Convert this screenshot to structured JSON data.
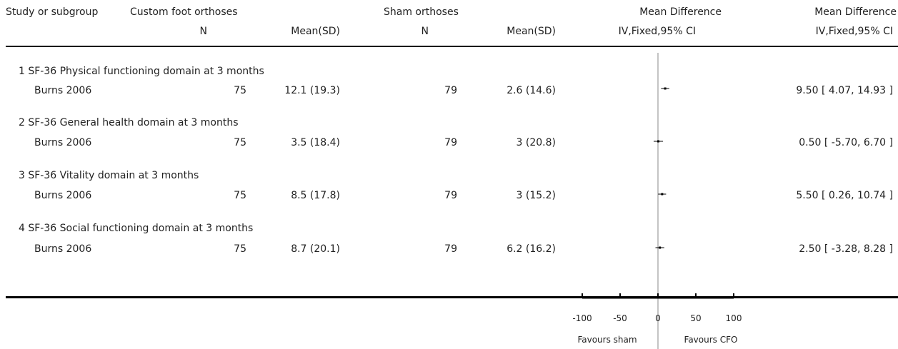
{
  "header": {
    "study": "Study or subgroup",
    "group1": "Custom foot orthoses",
    "group2": "Sham orthoses",
    "md1": "Mean Difference",
    "md2": "Mean Difference",
    "n1": "N",
    "mean1": "Mean(SD)",
    "n2": "N",
    "mean2": "Mean(SD)",
    "ci1": "IV,Fixed,95% CI",
    "ci2": "IV,Fixed,95% CI"
  },
  "chart_data": {
    "type": "forest",
    "xlim": [
      -100,
      100
    ],
    "ticks": [
      "-100",
      "-50",
      "0",
      "50",
      "100"
    ],
    "tick_values": [
      -100,
      -50,
      0,
      50,
      100
    ],
    "favours_left": "Favours sham",
    "favours_right": "Favours CFO",
    "subgroups": [
      {
        "title": "1 SF-36 Physical functioning domain at 3 months",
        "study": "Burns 2006",
        "n1": "75",
        "mean_sd1": "12.1 (19.3)",
        "n2": "79",
        "mean_sd2": "2.6 (14.6)",
        "md": 9.5,
        "lo": 4.07,
        "hi": 14.93,
        "ci_text": "9.50 [ 4.07, 14.93 ]"
      },
      {
        "title": "2 SF-36 General health domain at 3 months",
        "study": "Burns 2006",
        "n1": "75",
        "mean_sd1": "3.5 (18.4)",
        "n2": "79",
        "mean_sd2": "3 (20.8)",
        "md": 0.5,
        "lo": -5.7,
        "hi": 6.7,
        "ci_text": "0.50 [ -5.70, 6.70 ]"
      },
      {
        "title": "3 SF-36 Vitality domain at 3 months",
        "study": "Burns 2006",
        "n1": "75",
        "mean_sd1": "8.5 (17.8)",
        "n2": "79",
        "mean_sd2": "3 (15.2)",
        "md": 5.5,
        "lo": 0.26,
        "hi": 10.74,
        "ci_text": "5.50 [ 0.26, 10.74 ]"
      },
      {
        "title": "4 SF-36 Social functioning domain at 3 months",
        "study": "Burns 2006",
        "n1": "75",
        "mean_sd1": "8.7 (20.1)",
        "n2": "79",
        "mean_sd2": "6.2 (16.2)",
        "md": 2.5,
        "lo": -3.28,
        "hi": 8.28,
        "ci_text": "2.50 [ -3.28, 8.28 ]"
      }
    ]
  }
}
